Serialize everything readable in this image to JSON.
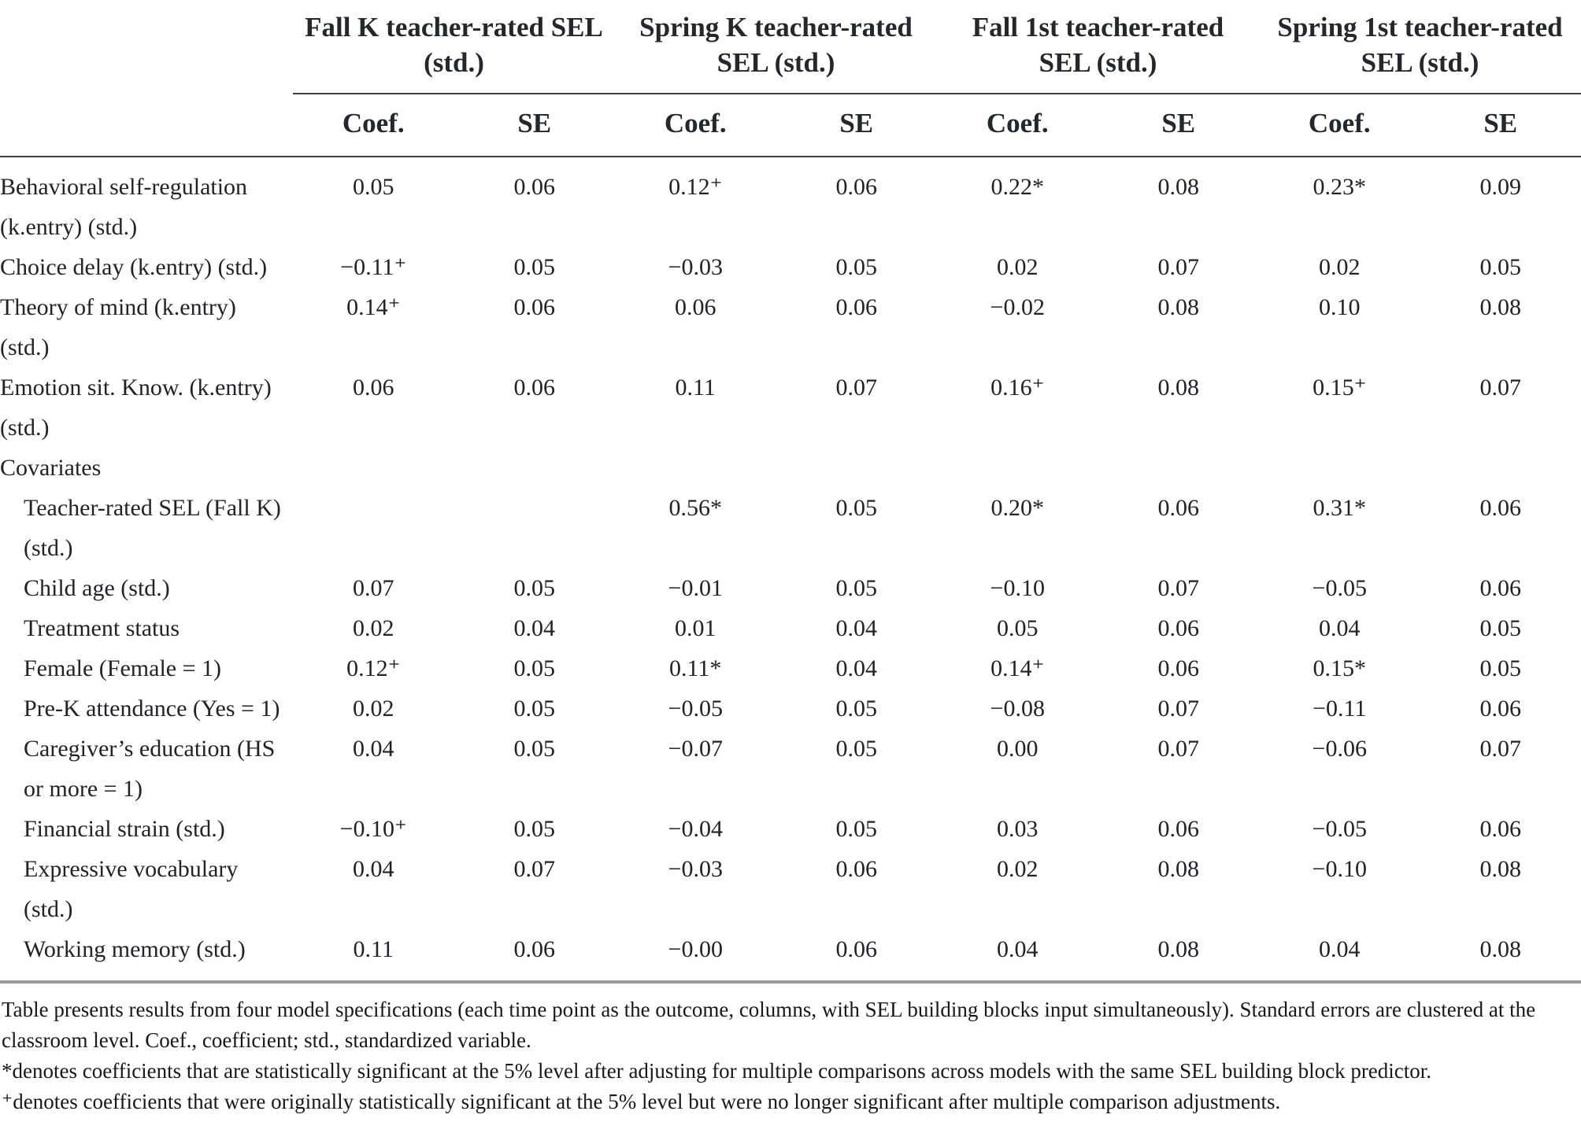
{
  "colors": {
    "text": "#202328",
    "header_text": "#24272c",
    "rule_dark": "#3c3f44",
    "rule_gray": "#999b9e",
    "background": "#ffffff"
  },
  "table": {
    "column_groups": [
      {
        "label": "Fall K teacher-rated SEL\n(std.)",
        "sub": [
          "Coef.",
          "SE"
        ]
      },
      {
        "label": "Spring K teacher-rated\nSEL (std.)",
        "sub": [
          "Coef.",
          "SE"
        ]
      },
      {
        "label": "Fall 1st teacher-rated\nSEL (std.)",
        "sub": [
          "Coef.",
          "SE"
        ]
      },
      {
        "label": "Spring 1st teacher-rated\nSEL (std.)",
        "sub": [
          "Coef.",
          "SE"
        ]
      }
    ],
    "rows": [
      {
        "label": "Behavioral self-regulation\n(k.entry) (std.)",
        "indent": false,
        "section": false,
        "values": [
          "0.05",
          "0.06",
          "0.12⁺",
          "0.06",
          "0.22*",
          "0.08",
          "0.23*",
          "0.09"
        ]
      },
      {
        "label": "Choice delay (k.entry) (std.)",
        "indent": false,
        "section": false,
        "values": [
          "−0.11⁺",
          "0.05",
          "−0.03",
          "0.05",
          "0.02",
          "0.07",
          "0.02",
          "0.05"
        ]
      },
      {
        "label": "Theory of mind (k.entry)\n(std.)",
        "indent": false,
        "section": false,
        "values": [
          "0.14⁺",
          "0.06",
          "0.06",
          "0.06",
          "−0.02",
          "0.08",
          "0.10",
          "0.08"
        ]
      },
      {
        "label": "Emotion sit. Know. (k.entry)\n(std.)",
        "indent": false,
        "section": false,
        "values": [
          "0.06",
          "0.06",
          "0.11",
          "0.07",
          "0.16⁺",
          "0.08",
          "0.15⁺",
          "0.07"
        ]
      },
      {
        "label": "Covariates",
        "indent": false,
        "section": true,
        "values": [
          "",
          "",
          "",
          "",
          "",
          "",
          "",
          ""
        ]
      },
      {
        "label": "Teacher-rated SEL (Fall K)\n(std.)",
        "indent": true,
        "section": false,
        "values": [
          "",
          "",
          "0.56*",
          "0.05",
          "0.20*",
          "0.06",
          "0.31*",
          "0.06"
        ]
      },
      {
        "label": "Child age (std.)",
        "indent": true,
        "section": false,
        "values": [
          "0.07",
          "0.05",
          "−0.01",
          "0.05",
          "−0.10",
          "0.07",
          "−0.05",
          "0.06"
        ]
      },
      {
        "label": "Treatment status",
        "indent": true,
        "section": false,
        "values": [
          "0.02",
          "0.04",
          "0.01",
          "0.04",
          "0.05",
          "0.06",
          "0.04",
          "0.05"
        ]
      },
      {
        "label": "Female (Female = 1)",
        "indent": true,
        "section": false,
        "values": [
          "0.12⁺",
          "0.05",
          "0.11*",
          "0.04",
          "0.14⁺",
          "0.06",
          "0.15*",
          "0.05"
        ]
      },
      {
        "label": "Pre-K attendance (Yes = 1)",
        "indent": true,
        "section": false,
        "values": [
          "0.02",
          "0.05",
          "−0.05",
          "0.05",
          "−0.08",
          "0.07",
          "−0.11",
          "0.06"
        ]
      },
      {
        "label": "Caregiver’s education (HS\nor more = 1)",
        "indent": true,
        "section": false,
        "values": [
          "0.04",
          "0.05",
          "−0.07",
          "0.05",
          "0.00",
          "0.07",
          "−0.06",
          "0.07"
        ]
      },
      {
        "label": "Financial strain (std.)",
        "indent": true,
        "section": false,
        "values": [
          "−0.10⁺",
          "0.05",
          "−0.04",
          "0.05",
          "0.03",
          "0.06",
          "−0.05",
          "0.06"
        ]
      },
      {
        "label": "Expressive vocabulary\n(std.)",
        "indent": true,
        "section": false,
        "values": [
          "0.04",
          "0.07",
          "−0.03",
          "0.06",
          "0.02",
          "0.08",
          "−0.10",
          "0.08"
        ]
      },
      {
        "label": "Working memory (std.)",
        "indent": true,
        "section": false,
        "values": [
          "0.11",
          "0.06",
          "−0.00",
          "0.06",
          "0.04",
          "0.08",
          "0.04",
          "0.08"
        ]
      }
    ],
    "footnotes": [
      "Table presents results from four model specifications (each time point as the outcome, columns, with SEL building blocks input simultaneously). Standard errors are clustered at the classroom level. Coef., coefficient; std., standardized variable.",
      "*denotes coefficients that are statistically significant at the 5% level after adjusting for multiple comparisons across models with the same SEL building block predictor.",
      "⁺denotes coefficients that were originally statistically significant at the 5% level but were no longer significant after multiple comparison adjustments."
    ]
  }
}
